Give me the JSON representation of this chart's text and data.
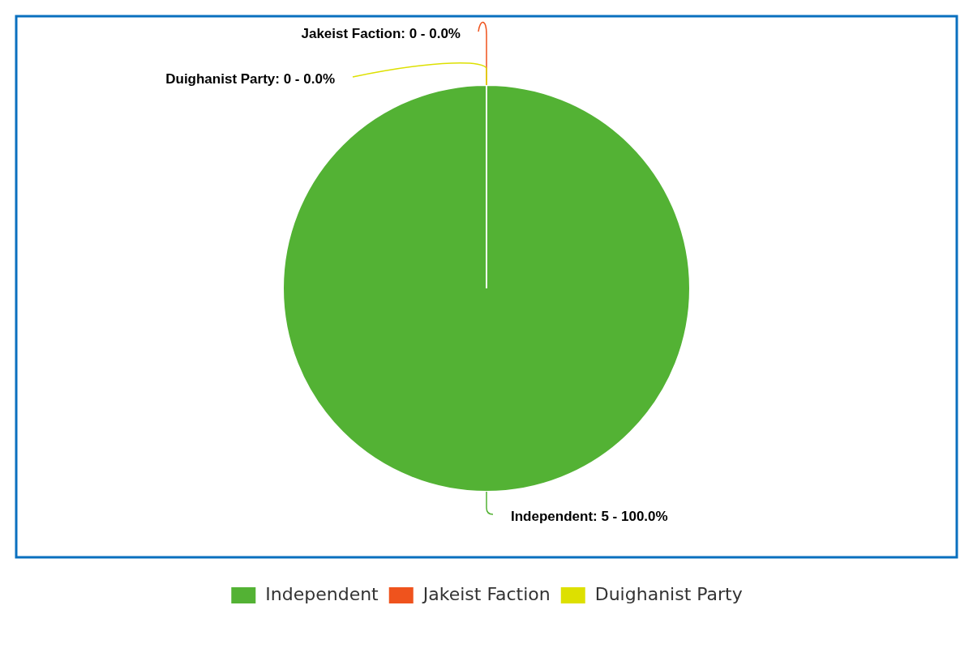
{
  "chart_data": {
    "type": "pie",
    "categories": [
      "Independent",
      "Jakeist Faction",
      "Duighanist Party"
    ],
    "values": [
      5,
      0,
      0
    ],
    "colors": [
      "#53b234",
      "#ef531d",
      "#dde000"
    ],
    "value_labels": [
      "Independent: 5 - 100.0%",
      "Jakeist Faction: 0 - 0.0%",
      "Duighanist Party: 0 - 0.0%"
    ],
    "legend": "bottom"
  }
}
